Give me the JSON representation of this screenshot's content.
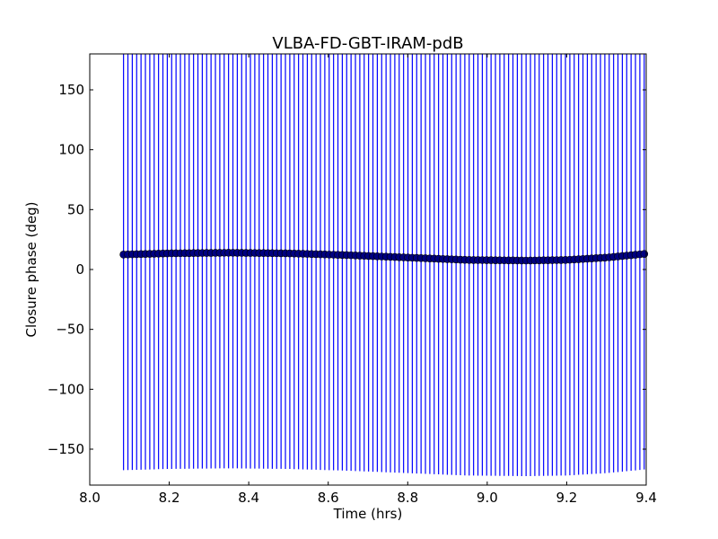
{
  "chart_data": {
    "type": "scatter",
    "title": "VLBA-FD-GBT-IRAM-pdB",
    "xlabel": "Time (hrs)",
    "ylabel": "Closure phase (deg)",
    "xlim": [
      8.0,
      9.4
    ],
    "ylim": [
      -180,
      180
    ],
    "xticks": [
      8.0,
      8.2,
      8.4,
      8.6,
      8.8,
      9.0,
      9.2,
      9.4
    ],
    "xtick_labels": [
      "8.0",
      "8.2",
      "8.4",
      "8.6",
      "8.8",
      "9.0",
      "9.2",
      "9.4"
    ],
    "yticks": [
      -150,
      -100,
      -50,
      0,
      50,
      100,
      150
    ],
    "ytick_labels": [
      "−150",
      "−100",
      "−50",
      "0",
      "50",
      "100",
      "150"
    ],
    "grid": false,
    "errorbar_color": "#0000ff",
    "marker_color": "#000080",
    "points": {
      "x_start": 8.085,
      "x_end": 9.395,
      "count": 120,
      "x_anchor": [
        8.085,
        8.2,
        8.35,
        8.5,
        8.65,
        8.8,
        8.95,
        9.1,
        9.2,
        9.3,
        9.395
      ],
      "y_anchor": [
        12.5,
        13.5,
        14.0,
        13.5,
        12.0,
        10.0,
        8.0,
        7.5,
        8.0,
        10.0,
        13.0
      ],
      "yerr": 180
    }
  }
}
